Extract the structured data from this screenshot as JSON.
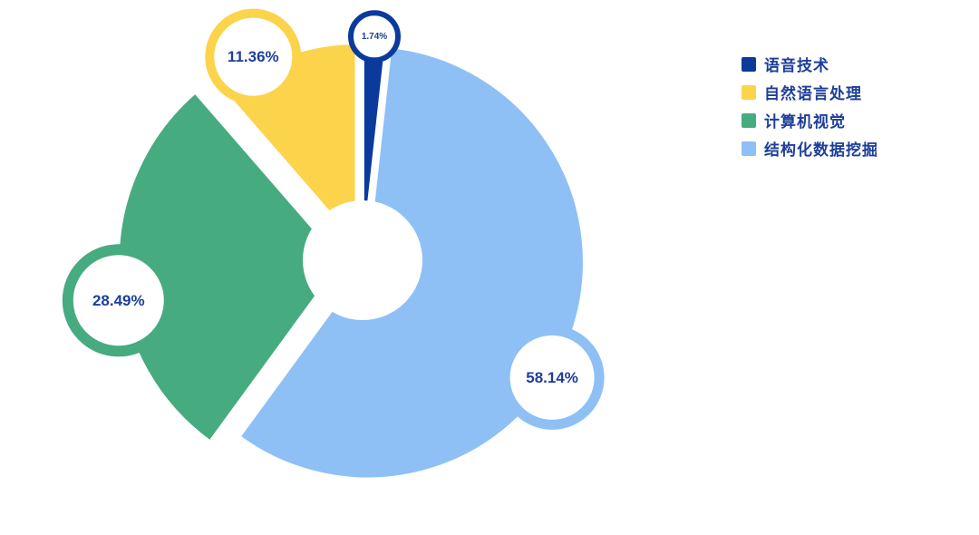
{
  "chart_data": {
    "type": "pie",
    "style": "exploded-donut",
    "title": "",
    "labels": [
      "语音技术",
      "自然语言处理",
      "计算机视觉",
      "结构化数据挖掘"
    ],
    "values": [
      1.74,
      11.36,
      28.49,
      58.14
    ],
    "value_labels": [
      "1.74%",
      "11.36%",
      "28.49%",
      "58.14%"
    ],
    "colors": [
      "#0b3a9d",
      "#fbd44c",
      "#47ab80",
      "#8ec0f6"
    ],
    "label_text_color": "#1d3e9b",
    "legend_text_color": "#1d3e9b",
    "legend_position": "top-right",
    "background": "#ffffff",
    "grid": false
  }
}
